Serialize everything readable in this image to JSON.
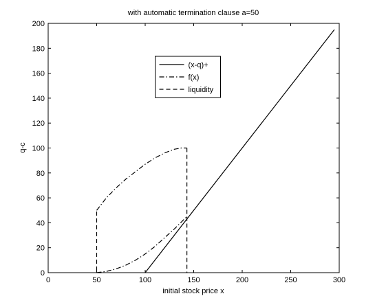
{
  "chart_data": {
    "type": "line",
    "title": "with automatic termination clause a=50",
    "xlabel": "initial stock price x",
    "ylabel": "q-c",
    "xlim": [
      0,
      300
    ],
    "xticks": [
      0,
      50,
      100,
      150,
      200,
      250,
      300
    ],
    "ylim": [
      0,
      200
    ],
    "yticks": [
      0,
      20,
      40,
      60,
      80,
      100,
      120,
      140,
      160,
      180,
      200
    ],
    "legend": "upper center",
    "series": [
      {
        "name": "(x-q)+",
        "color": "#000000",
        "style": "solid",
        "x": [
          100,
          295
        ],
        "values": [
          0,
          195
        ]
      },
      {
        "name": "f(x)",
        "color": "#000000",
        "style": "dashdot",
        "x": [
          50,
          60,
          70,
          80,
          90,
          100,
          110,
          120,
          130,
          143,
          null,
          50,
          60,
          70,
          80,
          90,
          100,
          110,
          120,
          130,
          137,
          143
        ],
        "values": [
          0,
          1,
          3,
          6,
          10,
          15,
          21,
          28,
          35,
          45,
          null,
          50,
          60,
          68,
          75,
          81,
          87,
          92,
          96,
          99,
          100,
          100
        ]
      },
      {
        "name": "liquidity",
        "color": "#000000",
        "style": "dashed",
        "x": [
          55,
          50,
          50,
          null,
          143,
          143
        ],
        "values": [
          0,
          0,
          50,
          null,
          100,
          0
        ]
      }
    ]
  }
}
